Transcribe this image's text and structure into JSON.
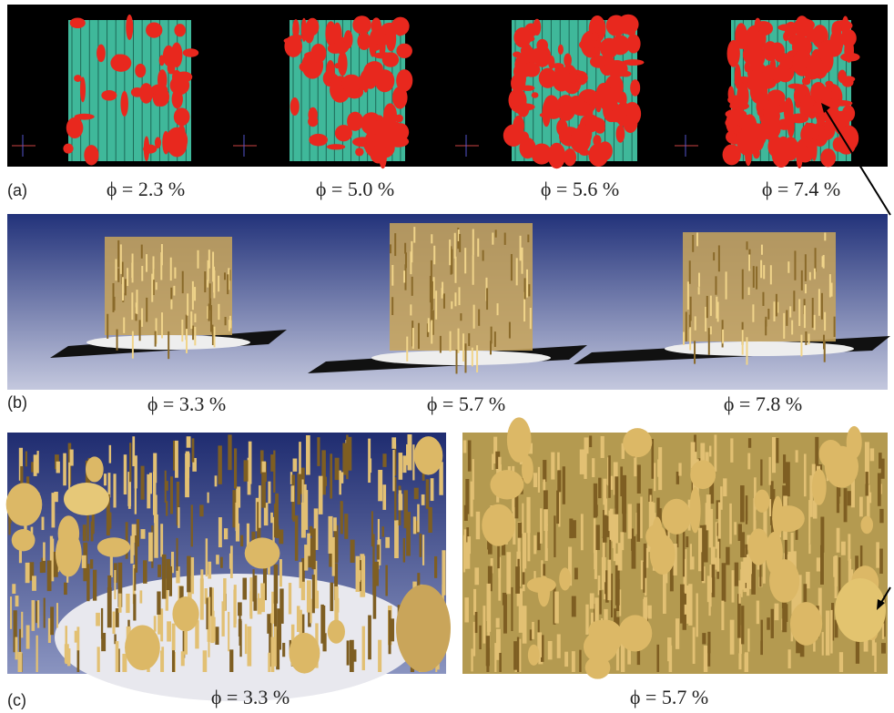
{
  "panels": [
    {
      "label": "(a)",
      "captions": [
        "ϕ = 2.3 %",
        "ϕ = 5.0 %",
        "ϕ = 5.6 %",
        "ϕ = 7.4 %"
      ]
    },
    {
      "label": "(b)",
      "captions": [
        "ϕ = 3.3 %",
        "ϕ = 5.7 %",
        "ϕ = 7.8 %"
      ]
    },
    {
      "label": "(c)",
      "captions": [
        "ϕ = 3.3 %",
        "ϕ = 5.7 %"
      ]
    }
  ]
}
